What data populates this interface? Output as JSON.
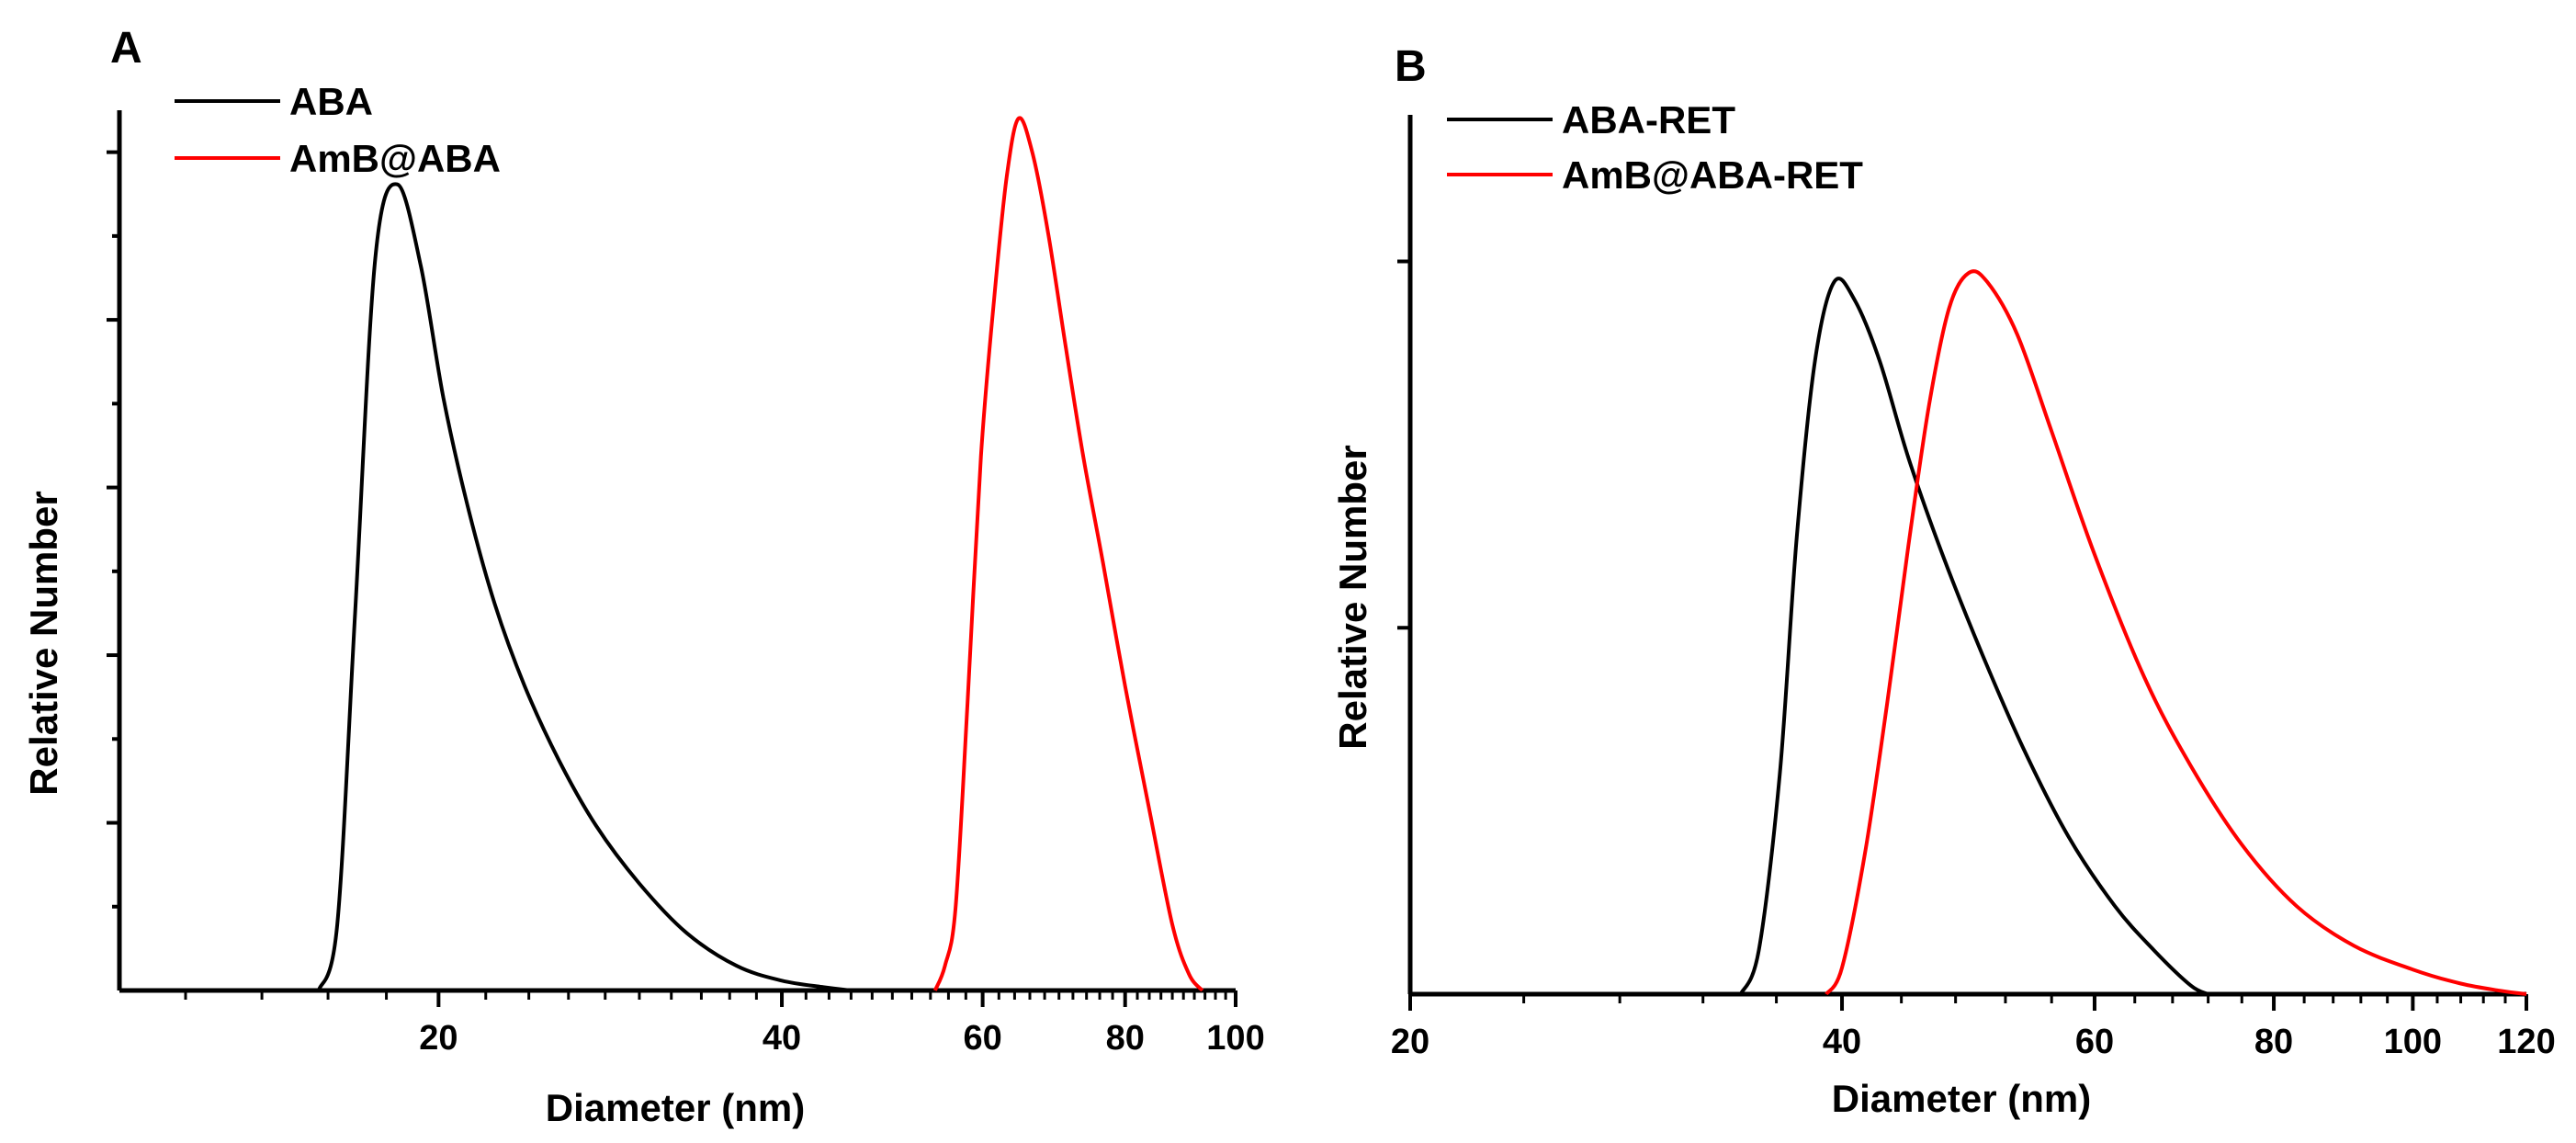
{
  "chart_data": [
    {
      "panel_label": "A",
      "type": "line",
      "xlabel": "Diameter (nm)",
      "ylabel": "Relative Number",
      "xscale": "log",
      "xlim": [
        10.5,
        100
      ],
      "ylim": [
        0,
        1.07
      ],
      "xtick_labels": [
        "20",
        "40",
        "60",
        "80",
        "100"
      ],
      "xtick_values": [
        20,
        40,
        60,
        80,
        100
      ],
      "legend_position": "top-left",
      "series": [
        {
          "name": "ABA",
          "color": "#000000",
          "x": [
            15.7,
            16.3,
            16.9,
            17.6,
            18.4,
            19.3,
            20.2,
            21.2,
            22.4,
            23.8,
            25.5,
            27.5,
            30.0,
            33.0,
            36.5,
            40.0,
            43.5,
            46.0
          ],
          "y": [
            0.0,
            0.08,
            0.46,
            0.89,
            0.98,
            0.88,
            0.72,
            0.59,
            0.47,
            0.37,
            0.28,
            0.2,
            0.13,
            0.07,
            0.03,
            0.012,
            0.004,
            0.0
          ]
        },
        {
          "name": "AmB@ABA",
          "color": "#ff0000",
          "x": [
            54.5,
            55.6,
            56.8,
            58.2,
            59.8,
            61.5,
            63.0,
            64.5,
            66.3,
            68.5,
            71.0,
            73.5,
            76.5,
            80.0,
            84.0,
            88.0,
            91.0,
            93.5
          ],
          "y": [
            0.0,
            0.03,
            0.1,
            0.35,
            0.65,
            0.85,
            0.99,
            1.06,
            1.02,
            0.92,
            0.78,
            0.65,
            0.52,
            0.37,
            0.22,
            0.08,
            0.02,
            0.0
          ]
        }
      ]
    },
    {
      "panel_label": "B",
      "type": "line",
      "xlabel": "Diameter (nm)",
      "ylabel": "Relative Number",
      "xscale": "log",
      "xlim": [
        20,
        120
      ],
      "ylim": [
        0,
        1.0
      ],
      "xtick_labels": [
        "20",
        "40",
        "60",
        "80",
        "100",
        "120"
      ],
      "xtick_values": [
        20,
        40,
        60,
        80,
        100,
        120
      ],
      "legend_position": "top-left",
      "series": [
        {
          "name": "ABA-RET",
          "color": "#000000",
          "x": [
            34.0,
            35.0,
            36.2,
            37.2,
            38.3,
            39.5,
            40.8,
            42.5,
            44.5,
            47.0,
            50.0,
            53.5,
            57.5,
            62.0,
            66.0,
            70.0,
            72.0
          ],
          "y": [
            0.0,
            0.05,
            0.25,
            0.52,
            0.72,
            0.81,
            0.79,
            0.72,
            0.61,
            0.5,
            0.39,
            0.28,
            0.18,
            0.1,
            0.05,
            0.01,
            0.0
          ]
        },
        {
          "name": "AmB@ABA-RET",
          "color": "#ff0000",
          "x": [
            39.0,
            40.0,
            41.5,
            43.0,
            44.5,
            46.0,
            47.5,
            49.0,
            50.5,
            53.0,
            56.0,
            60.0,
            65.0,
            70.0,
            76.0,
            83.0,
            91.0,
            100.0,
            108.0,
            115.0,
            120.0
          ],
          "y": [
            0.0,
            0.03,
            0.16,
            0.33,
            0.51,
            0.67,
            0.78,
            0.82,
            0.81,
            0.75,
            0.64,
            0.5,
            0.36,
            0.26,
            0.17,
            0.1,
            0.055,
            0.028,
            0.012,
            0.004,
            0.0
          ]
        }
      ]
    }
  ]
}
